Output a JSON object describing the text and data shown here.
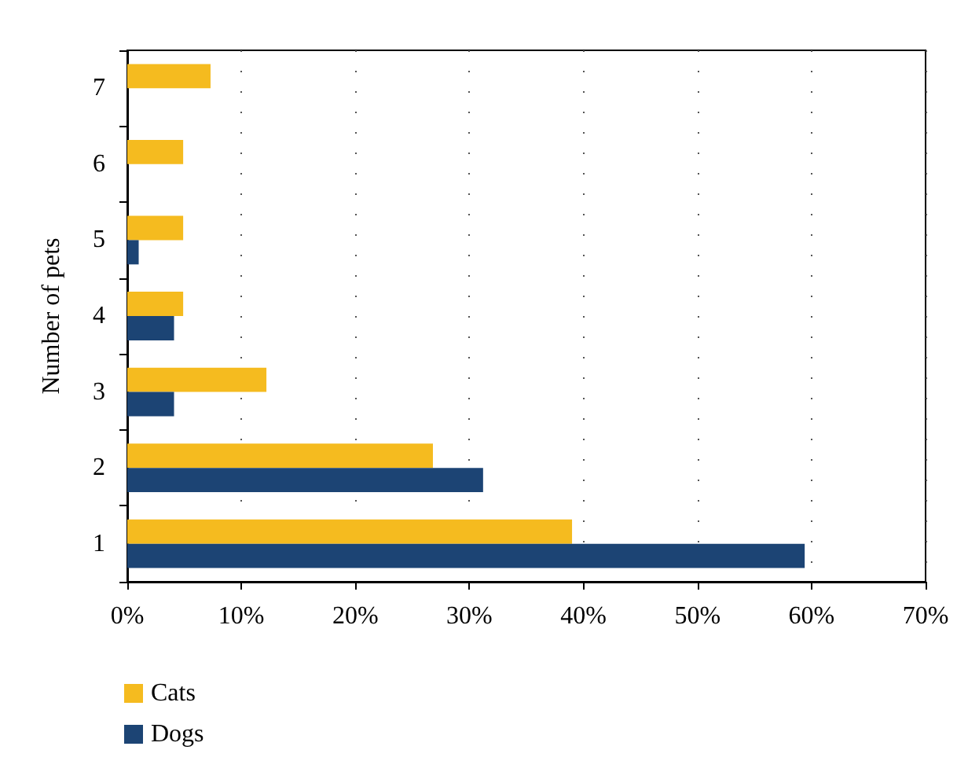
{
  "chart_data": {
    "type": "bar",
    "orientation": "horizontal",
    "ylabel": "Number of pets",
    "categories": [
      "7",
      "6",
      "5",
      "4",
      "3",
      "2",
      "1"
    ],
    "series": [
      {
        "name": "Cats",
        "color": "#f5bb1f",
        "values": [
          7.3,
          4.9,
          4.9,
          4.9,
          12.2,
          26.8,
          39.0
        ]
      },
      {
        "name": "Dogs",
        "color": "#1c4474",
        "values": [
          0,
          0,
          1.0,
          4.1,
          4.1,
          31.2,
          59.4
        ]
      }
    ],
    "xlim": [
      0,
      70
    ],
    "xticks": [
      {
        "value": 0,
        "label": "0%"
      },
      {
        "value": 10,
        "label": "10%"
      },
      {
        "value": 20,
        "label": "20%"
      },
      {
        "value": 30,
        "label": "30%"
      },
      {
        "value": 40,
        "label": "40%"
      },
      {
        "value": 50,
        "label": "50%"
      },
      {
        "value": 60,
        "label": "60%"
      },
      {
        "value": 70,
        "label": "70%"
      }
    ],
    "grid": "x",
    "legend": "bottom left"
  }
}
